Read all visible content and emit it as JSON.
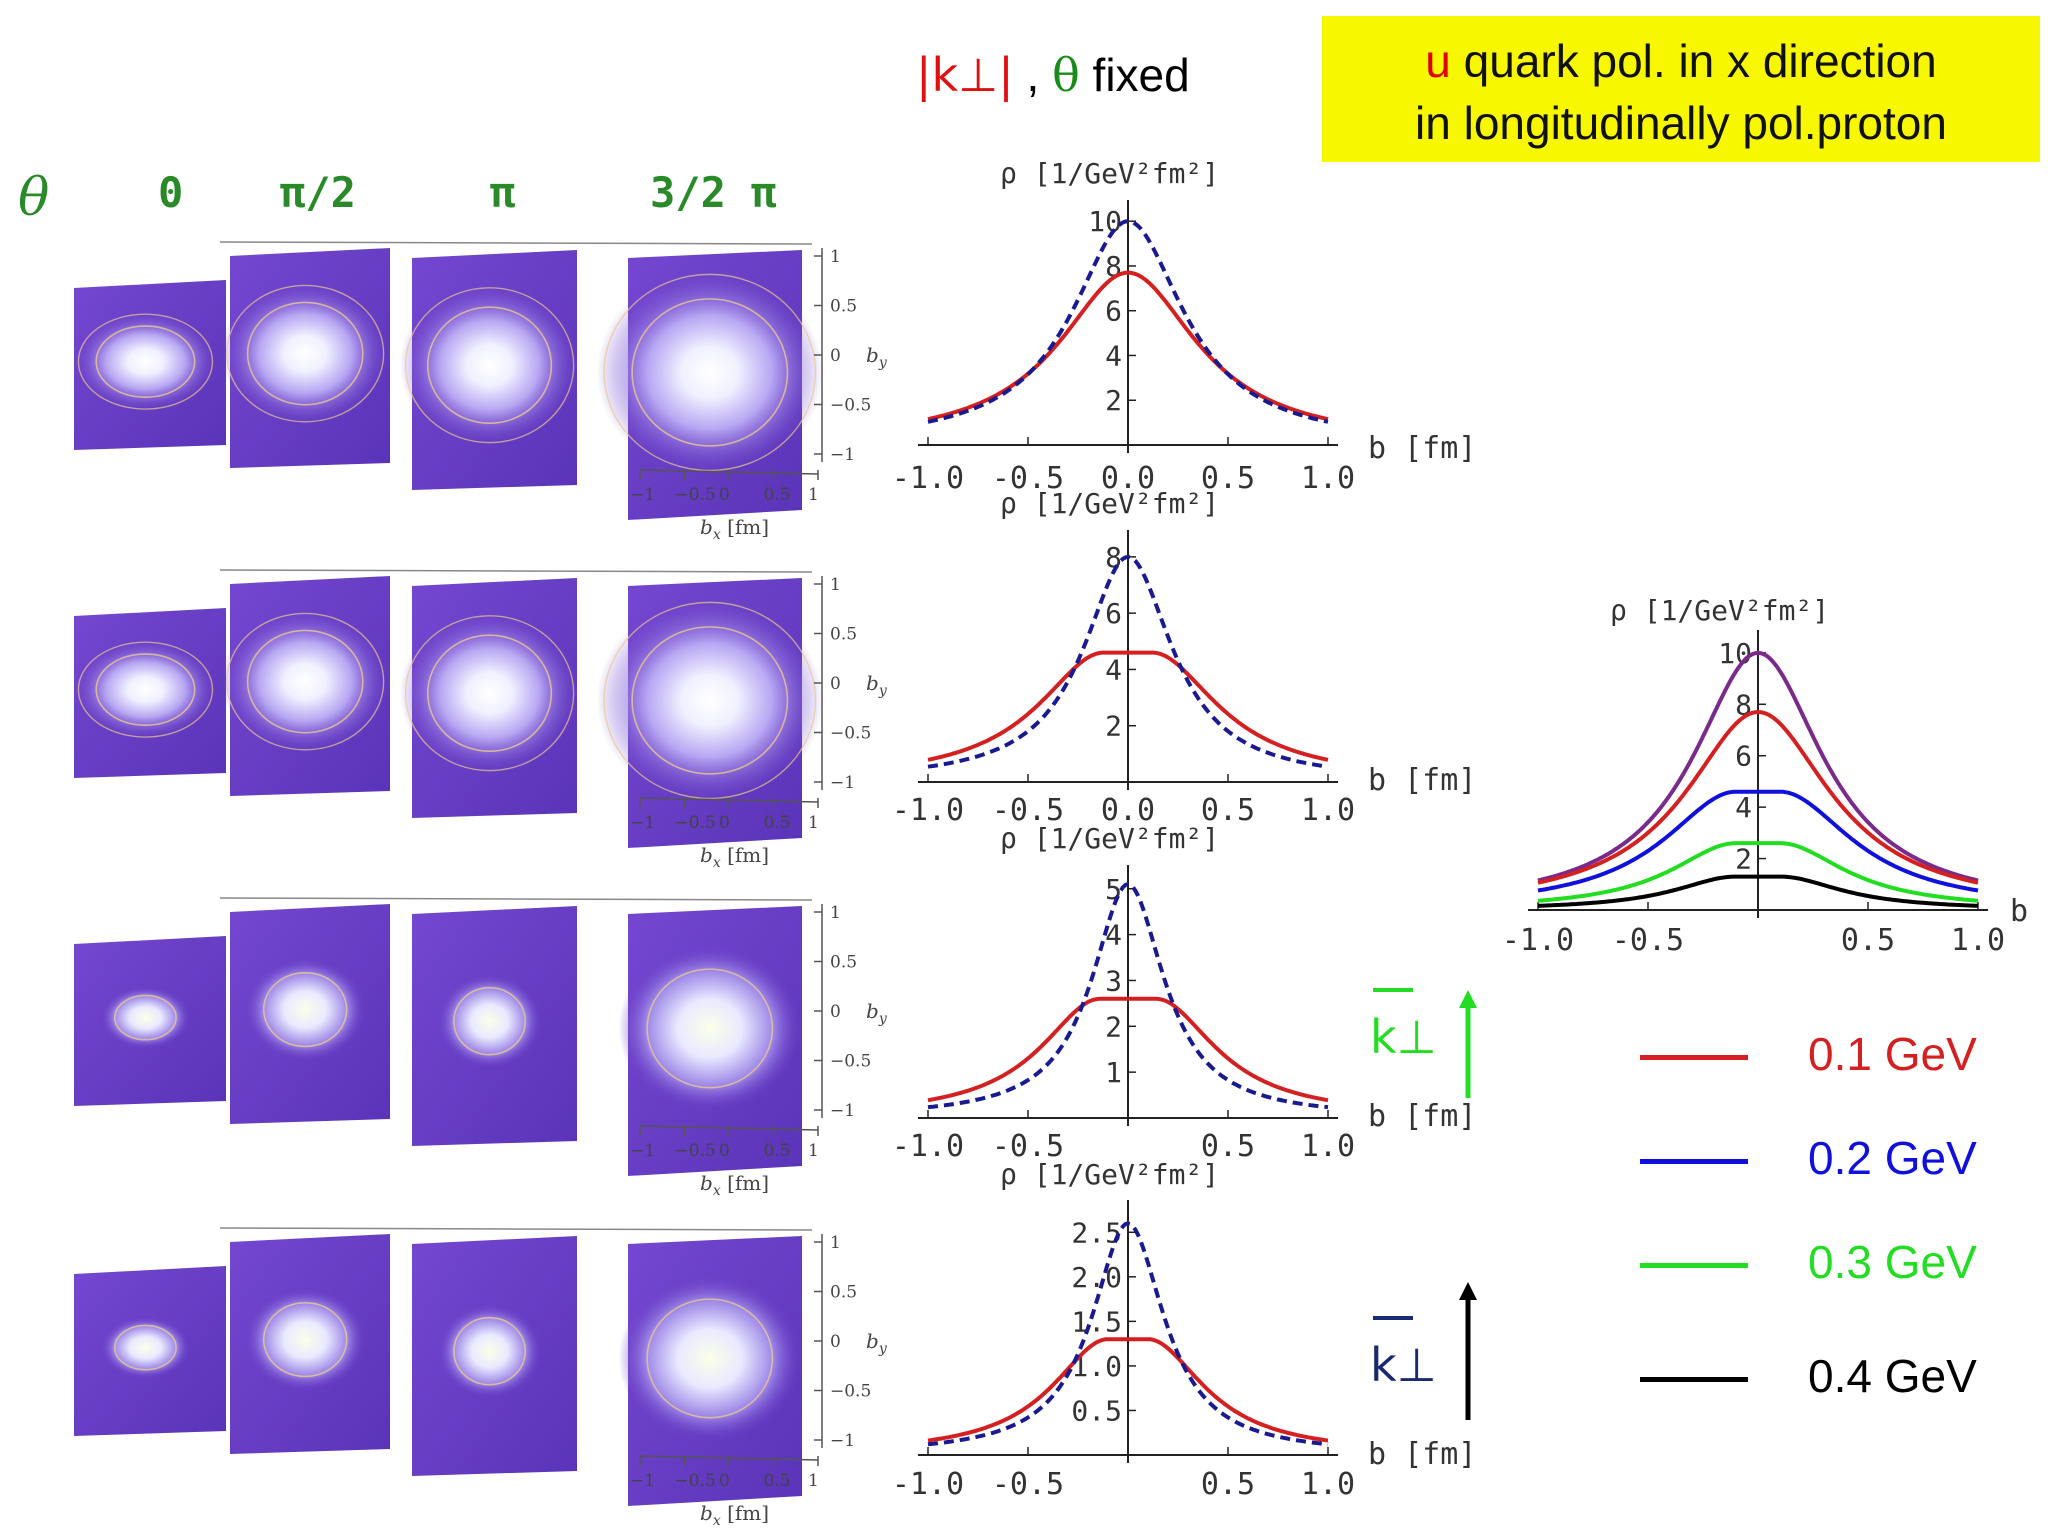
{
  "header": {
    "title_line1_highlight": "u",
    "title_line1_rest": " quark pol. in x direction",
    "title_line2": "in longitudinally pol.proton",
    "fixed_k": "|k⊥|",
    "fixed_sep": " , ",
    "fixed_theta": "θ",
    "fixed_word": "  fixed"
  },
  "theta_header": {
    "symbol": "θ",
    "labels": [
      "0",
      "π/2",
      "π",
      "3/2 π"
    ]
  },
  "density_maps": {
    "by_label": "b",
    "by_sub": "y",
    "bx_label": "b",
    "bx_sub": "x",
    "bx_unit": "[fm]",
    "y_ticks": [
      "1",
      "0.5",
      "0",
      "−0.5",
      "−1"
    ],
    "x_ticks": [
      "−1",
      "−0.5",
      "0",
      "0.5",
      "1"
    ]
  },
  "arrows": {
    "green_label": "k⊥",
    "dark_label": "k⊥"
  },
  "colors": {
    "red": "#d42020",
    "blue": "#1010dd",
    "green": "#22dd22",
    "black": "#000000",
    "purple": "#7a2a8a",
    "dashed_blue": "#1a1a90",
    "map_bg": "#6b3fc8"
  },
  "chart_data": [
    {
      "type": "line",
      "ylabel": "ρ  [1/GeV²fm²]",
      "xlabel": "b  [fm]",
      "xlim": [
        -1.0,
        1.0
      ],
      "ylim": [
        0,
        10.5
      ],
      "x_ticks": [
        "-1.0",
        "-0.5",
        "0.0",
        "0.5",
        "1.0"
      ],
      "y_ticks": [
        "2",
        "4",
        "6",
        "8",
        "10"
      ],
      "series": [
        {
          "style": "solid",
          "color": "#d42020",
          "peak": 7.7,
          "width": 0.42,
          "flat": 0.0,
          "tail": 0.55
        },
        {
          "style": "dashed",
          "color": "#1a1a90",
          "peak": 10.0,
          "width": 0.34,
          "flat": 0.0,
          "tail": 0.55
        }
      ]
    },
    {
      "type": "line",
      "ylabel": "ρ  [1/GeV²fm²]",
      "xlabel": "b  [fm]",
      "xlim": [
        -1.0,
        1.0
      ],
      "ylim": [
        0,
        8.6
      ],
      "x_ticks": [
        "-1.0",
        "-0.5",
        "0.0",
        "0.5",
        "1.0"
      ],
      "y_ticks": [
        "2",
        "4",
        "6",
        "8"
      ],
      "series": [
        {
          "style": "solid",
          "color": "#d42020",
          "peak": 4.6,
          "width": 0.4,
          "flat": 0.12,
          "tail": 0.32
        },
        {
          "style": "dashed",
          "color": "#1a1a90",
          "peak": 8.0,
          "width": 0.27,
          "flat": 0.0,
          "tail": 0.32
        }
      ]
    },
    {
      "type": "line",
      "ylabel": "ρ  [1/GeV²fm²]",
      "xlabel": "b  [fm]",
      "xlim": [
        -1.0,
        1.0
      ],
      "ylim": [
        0,
        5.3
      ],
      "x_ticks": [
        "-1.0",
        "-0.5",
        "",
        "0.5",
        "1.0"
      ],
      "y_ticks": [
        "1",
        "2",
        "3",
        "4",
        "5"
      ],
      "series": [
        {
          "style": "solid",
          "color": "#d42020",
          "peak": 2.6,
          "width": 0.36,
          "flat": 0.14,
          "tail": 0.15
        },
        {
          "style": "dashed",
          "color": "#1a1a90",
          "peak": 5.1,
          "width": 0.22,
          "flat": 0.0,
          "tail": 0.15
        }
      ]
    },
    {
      "type": "line",
      "ylabel": "ρ  [1/GeV²fm²]",
      "xlabel": "b  [fm]",
      "xlim": [
        -1.0,
        1.0
      ],
      "ylim": [
        0,
        2.75
      ],
      "x_ticks": [
        "-1.0",
        "-0.5",
        "",
        "0.5",
        "1.0"
      ],
      "y_ticks": [
        "0.5",
        "1.0",
        "1.5",
        "2.0",
        "2.5"
      ],
      "series": [
        {
          "style": "solid",
          "color": "#d42020",
          "peak": 1.3,
          "width": 0.34,
          "flat": 0.1,
          "tail": 0.05
        },
        {
          "style": "dashed",
          "color": "#1a1a90",
          "peak": 2.6,
          "width": 0.22,
          "flat": 0.0,
          "tail": 0.05
        }
      ]
    },
    {
      "type": "line",
      "ylabel": "ρ  [1/GeV²fm²]",
      "xlabel": "b",
      "xlim": [
        -1.0,
        1.0
      ],
      "ylim": [
        0,
        10.5
      ],
      "x_ticks": [
        "-1.0",
        "-0.5",
        "",
        "0.5",
        "1.0"
      ],
      "y_ticks": [
        "2",
        "4",
        "6",
        "8",
        "10"
      ],
      "series": [
        {
          "style": "solid",
          "color": "#7a2a8a",
          "peak": 10.0,
          "width": 0.36,
          "flat": 0.0,
          "tail": 0.9
        },
        {
          "style": "solid",
          "color": "#d42020",
          "peak": 7.7,
          "width": 0.4,
          "flat": 0.0,
          "tail": 0.7
        },
        {
          "style": "solid",
          "color": "#1010dd",
          "peak": 4.6,
          "width": 0.4,
          "flat": 0.1,
          "tail": 0.4
        },
        {
          "style": "solid",
          "color": "#22dd22",
          "peak": 2.6,
          "width": 0.36,
          "flat": 0.1,
          "tail": 0.15
        },
        {
          "style": "solid",
          "color": "#000000",
          "peak": 1.3,
          "width": 0.34,
          "flat": 0.1,
          "tail": 0.03
        }
      ]
    }
  ],
  "legend": [
    {
      "label": "0.1 GeV",
      "color": "#d42020"
    },
    {
      "label": "0.2 GeV",
      "color": "#1010dd"
    },
    {
      "label": "0.3 GeV",
      "color": "#22dd22"
    },
    {
      "label": "0.4 GeV",
      "color": "#000000"
    }
  ]
}
